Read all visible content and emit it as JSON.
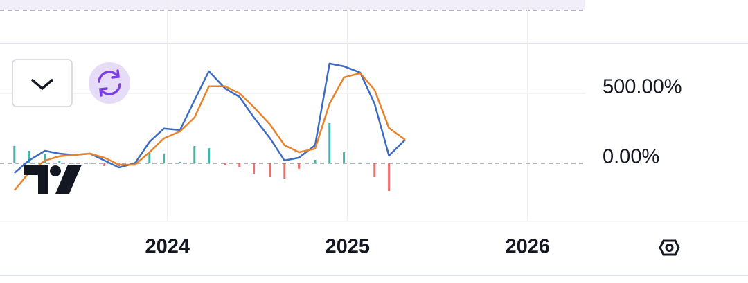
{
  "chart_data": {
    "type": "line",
    "x": [
      2023.15,
      2023.23,
      2023.32,
      2023.4,
      2023.48,
      2023.57,
      2023.65,
      2023.73,
      2023.82,
      2023.9,
      2023.98,
      2024.07,
      2024.15,
      2024.23,
      2024.32,
      2024.4,
      2024.48,
      2024.57,
      2024.65,
      2024.73,
      2024.82,
      2024.9,
      2024.98,
      2025.07,
      2025.15,
      2025.23,
      2025.32
    ],
    "series": [
      {
        "type": "bar",
        "color": "#26a69a",
        "negative_color": "#ef5350",
        "values": [
          124,
          89,
          69,
          19,
          0,
          0,
          -20,
          -20,
          10,
          74,
          70,
          10,
          123,
          108,
          -15,
          -25,
          -74,
          -99,
          -109,
          -39,
          25,
          287,
          79,
          5,
          -99,
          -198,
          0
        ]
      },
      {
        "color": "#3d6bc4",
        "values": [
          -69,
          20,
          89,
          69,
          59,
          69,
          20,
          -30,
          0,
          153,
          248,
          238,
          450,
          658,
          535,
          475,
          327,
          178,
          20,
          40,
          129,
          713,
          693,
          649,
          426,
          54,
          168
        ]
      },
      {
        "color": "#e8822b",
        "values": [
          -193,
          -69,
          20,
          50,
          59,
          69,
          40,
          -10,
          -10,
          79,
          178,
          228,
          327,
          550,
          550,
          500,
          401,
          277,
          129,
          79,
          104,
          426,
          614,
          644,
          525,
          252,
          168
        ]
      }
    ],
    "xlim": [
      2023.07,
      2026.32
    ],
    "xticks": [
      2024,
      2025,
      2026
    ],
    "ylim": [
      -416,
      856
    ],
    "yticks": [
      {
        "value": 500,
        "label": "500.00%"
      },
      {
        "value": 0,
        "label": "0.00%"
      }
    ],
    "grid": true
  }
}
